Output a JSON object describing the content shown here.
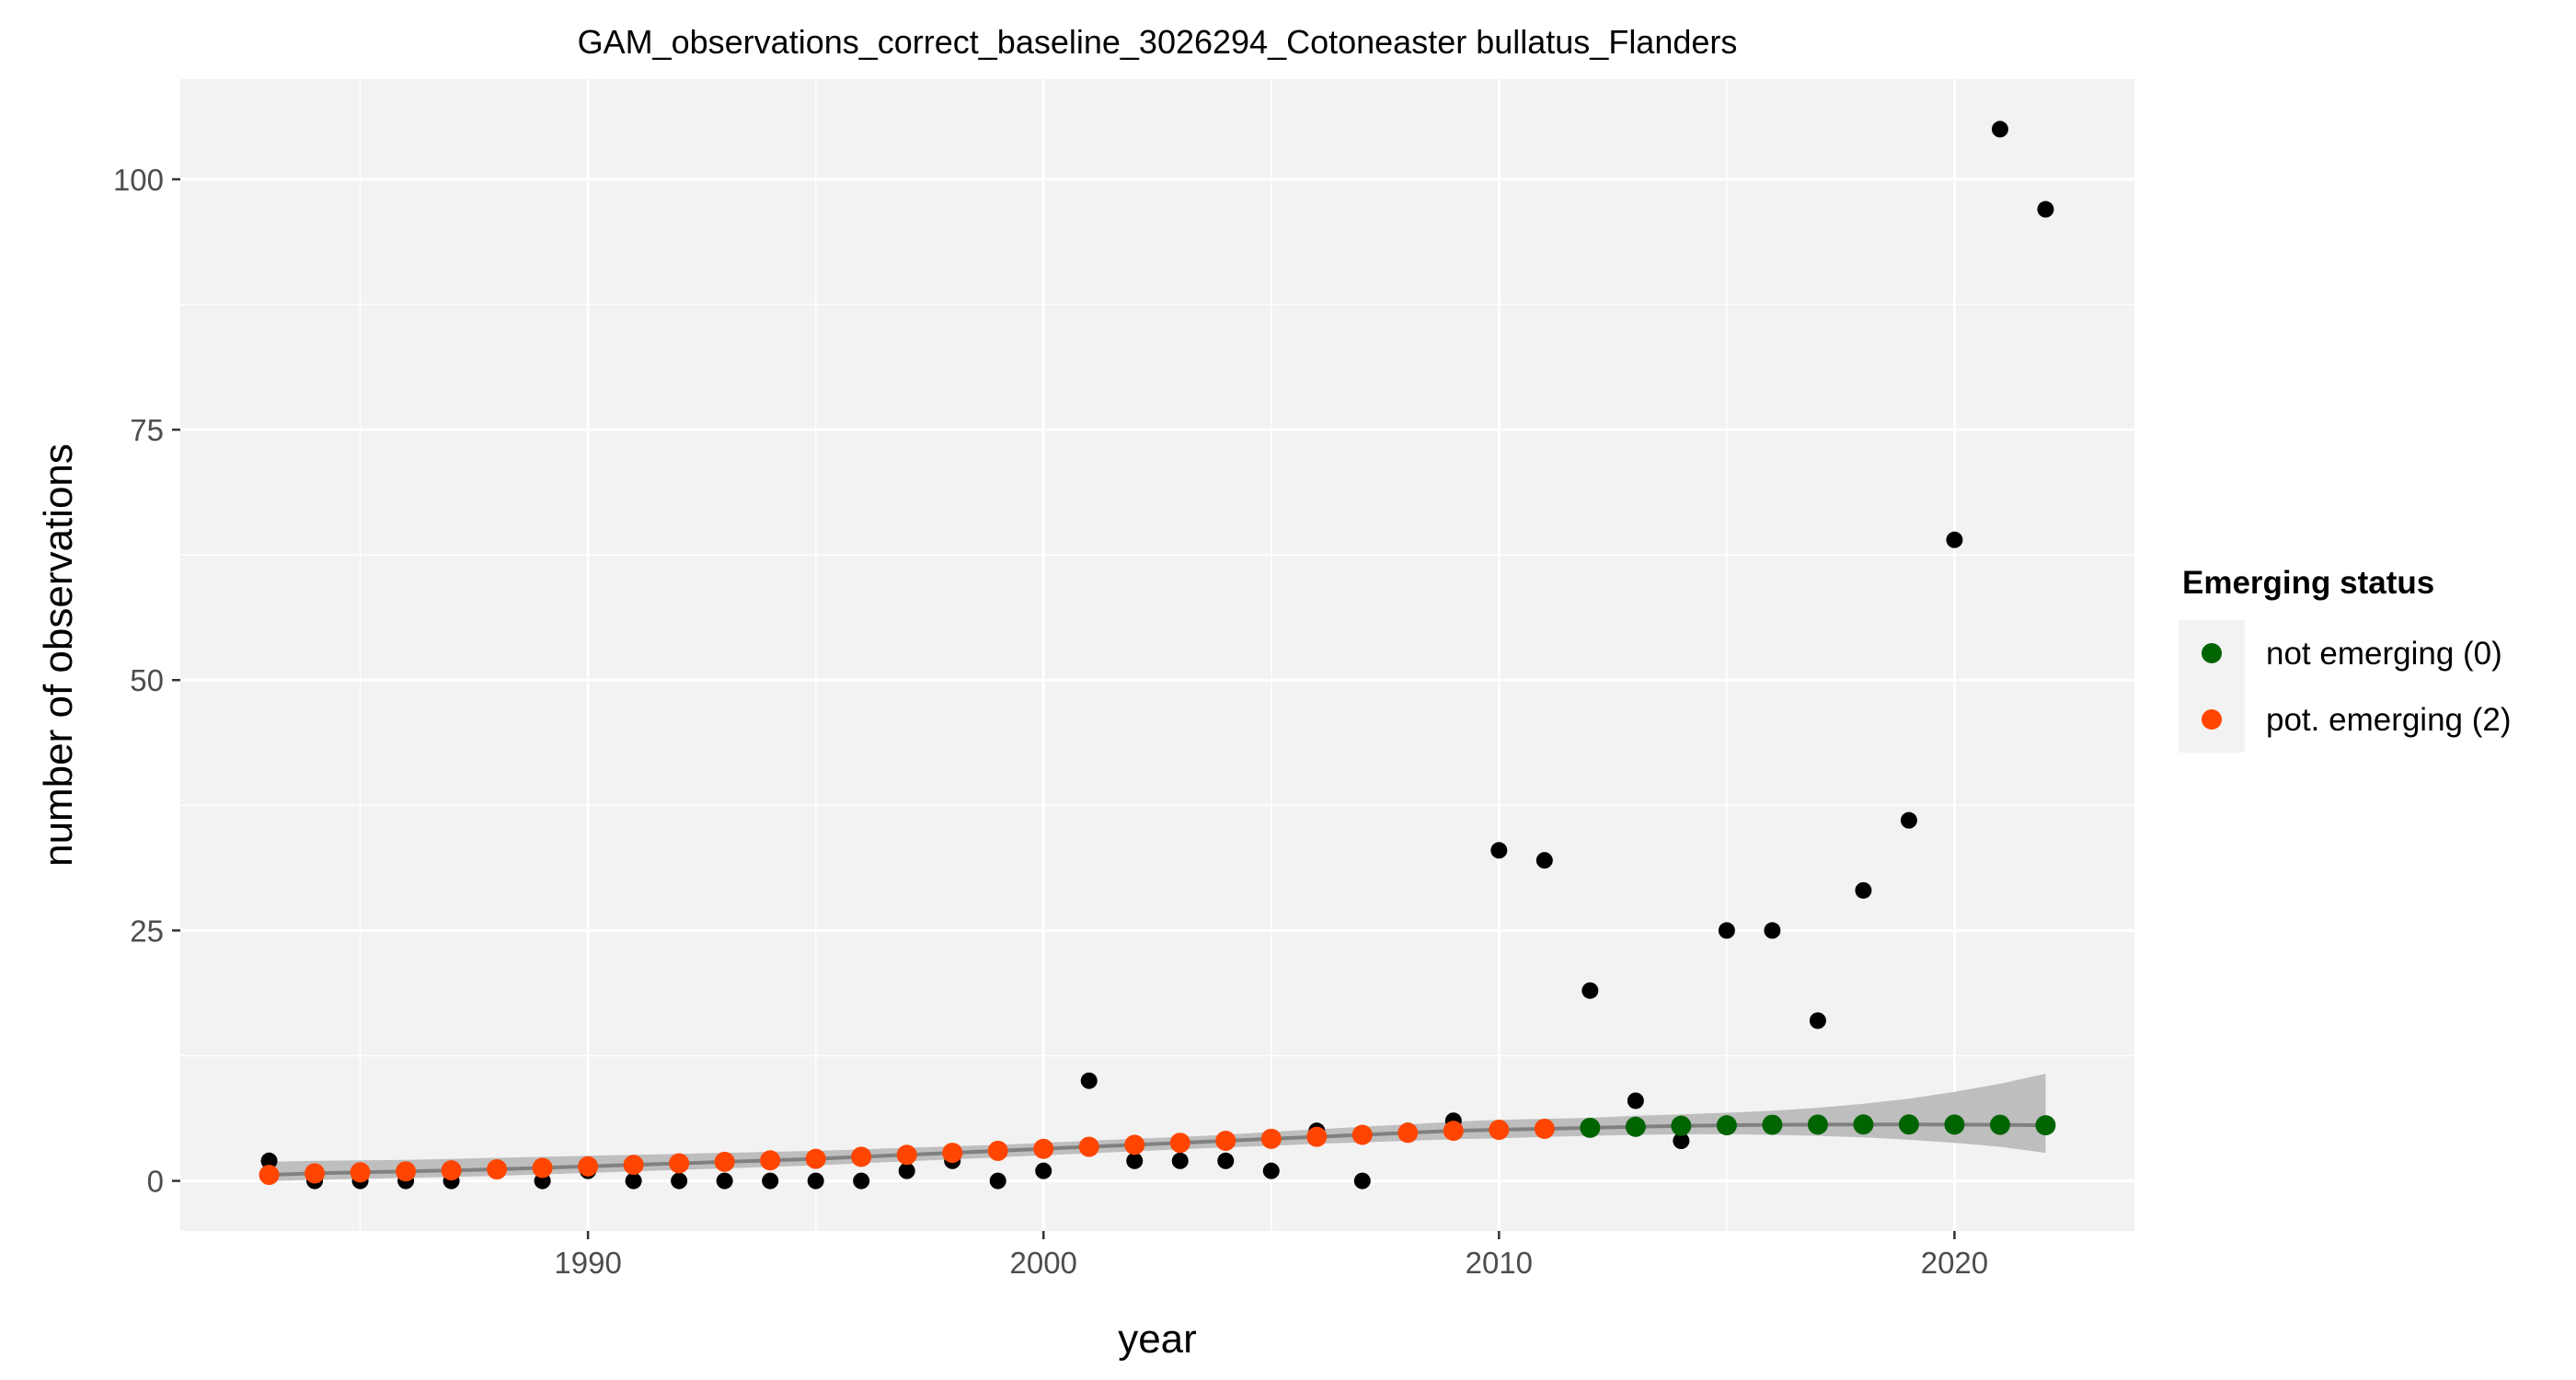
{
  "chart_data": {
    "type": "scatter",
    "title": "GAM_observations_correct_baseline_3026294_Cotoneaster bullatus_Flanders",
    "xlabel": "year",
    "ylabel": "number of observations",
    "xlim": [
      1981.05,
      2023.95
    ],
    "ylim": [
      -5,
      110
    ],
    "x_ticks": [
      1990,
      2000,
      2010,
      2020
    ],
    "y_ticks": [
      0,
      25,
      50,
      75,
      100
    ],
    "grid": true,
    "legend": {
      "title": "Emerging status",
      "position": "right",
      "entries": [
        {
          "label": "not emerging (0)",
          "color": "#006400"
        },
        {
          "label": "pot. emerging (2)",
          "color": "#FF4500"
        }
      ]
    },
    "observations": {
      "color": "#000000",
      "x": [
        1983,
        1984,
        1985,
        1986,
        1987,
        1988,
        1989,
        1990,
        1991,
        1992,
        1993,
        1994,
        1995,
        1996,
        1997,
        1998,
        1999,
        2000,
        2001,
        2002,
        2003,
        2004,
        2005,
        2006,
        2007,
        2008,
        2009,
        2010,
        2011,
        2012,
        2013,
        2014,
        2015,
        2016,
        2017,
        2018,
        2019,
        2020,
        2021,
        2022
      ],
      "y": [
        2,
        0,
        0,
        0,
        0,
        1,
        0,
        1,
        0,
        0,
        0,
        0,
        0,
        0,
        1,
        2,
        0,
        1,
        10,
        2,
        2,
        2,
        1,
        5,
        0,
        5,
        6,
        33,
        32,
        19,
        8,
        4,
        25,
        25,
        16,
        29,
        36,
        64,
        105,
        97
      ]
    },
    "gam_fit": {
      "color": "#808080",
      "band_color": "#bebebe",
      "x": [
        1983,
        1984,
        1985,
        1986,
        1987,
        1988,
        1989,
        1990,
        1991,
        1992,
        1993,
        1994,
        1995,
        1996,
        1997,
        1998,
        1999,
        2000,
        2001,
        2002,
        2003,
        2004,
        2005,
        2006,
        2007,
        2008,
        2009,
        2010,
        2011,
        2012,
        2013,
        2014,
        2015,
        2016,
        2017,
        2018,
        2019,
        2020,
        2021,
        2022
      ],
      "y": [
        0.6,
        0.75,
        0.85,
        0.95,
        1.05,
        1.15,
        1.3,
        1.45,
        1.6,
        1.75,
        1.9,
        2.05,
        2.2,
        2.4,
        2.6,
        2.8,
        3.0,
        3.2,
        3.4,
        3.6,
        3.8,
        4.0,
        4.2,
        4.4,
        4.6,
        4.8,
        5.0,
        5.1,
        5.2,
        5.3,
        5.4,
        5.5,
        5.55,
        5.6,
        5.62,
        5.63,
        5.63,
        5.62,
        5.6,
        5.55
      ],
      "lower": [
        0.0,
        0.1,
        0.2,
        0.3,
        0.4,
        0.5,
        0.65,
        0.8,
        0.95,
        1.1,
        1.25,
        1.4,
        1.55,
        1.75,
        1.95,
        2.15,
        2.35,
        2.55,
        2.75,
        2.95,
        3.15,
        3.35,
        3.5,
        3.7,
        3.85,
        4.0,
        4.15,
        4.25,
        4.4,
        4.5,
        4.6,
        4.65,
        4.65,
        4.6,
        4.5,
        4.35,
        4.1,
        3.8,
        3.4,
        2.8
      ],
      "upper": [
        1.9,
        2.0,
        2.05,
        2.1,
        2.2,
        2.3,
        2.4,
        2.5,
        2.6,
        2.7,
        2.8,
        2.9,
        3.0,
        3.15,
        3.3,
        3.45,
        3.6,
        3.8,
        4.0,
        4.2,
        4.4,
        4.6,
        4.9,
        5.15,
        5.4,
        5.65,
        5.9,
        6.1,
        6.2,
        6.3,
        6.5,
        6.65,
        6.8,
        7.0,
        7.3,
        7.7,
        8.2,
        8.9,
        9.7,
        10.7
      ]
    },
    "emerging_status": [
      {
        "status": "pot. emerging (2)",
        "x": [
          1983,
          1984,
          1985,
          1986,
          1987,
          1988,
          1989,
          1990,
          1991,
          1992,
          1993,
          1994,
          1995,
          1996,
          1997,
          1998,
          1999,
          2000,
          2001,
          2002,
          2003,
          2004,
          2005,
          2006,
          2007,
          2008,
          2009,
          2010,
          2011
        ]
      },
      {
        "status": "not emerging (0)",
        "x": [
          2012,
          2013,
          2014,
          2015,
          2016,
          2017,
          2018,
          2019,
          2020,
          2021,
          2022
        ]
      }
    ]
  }
}
